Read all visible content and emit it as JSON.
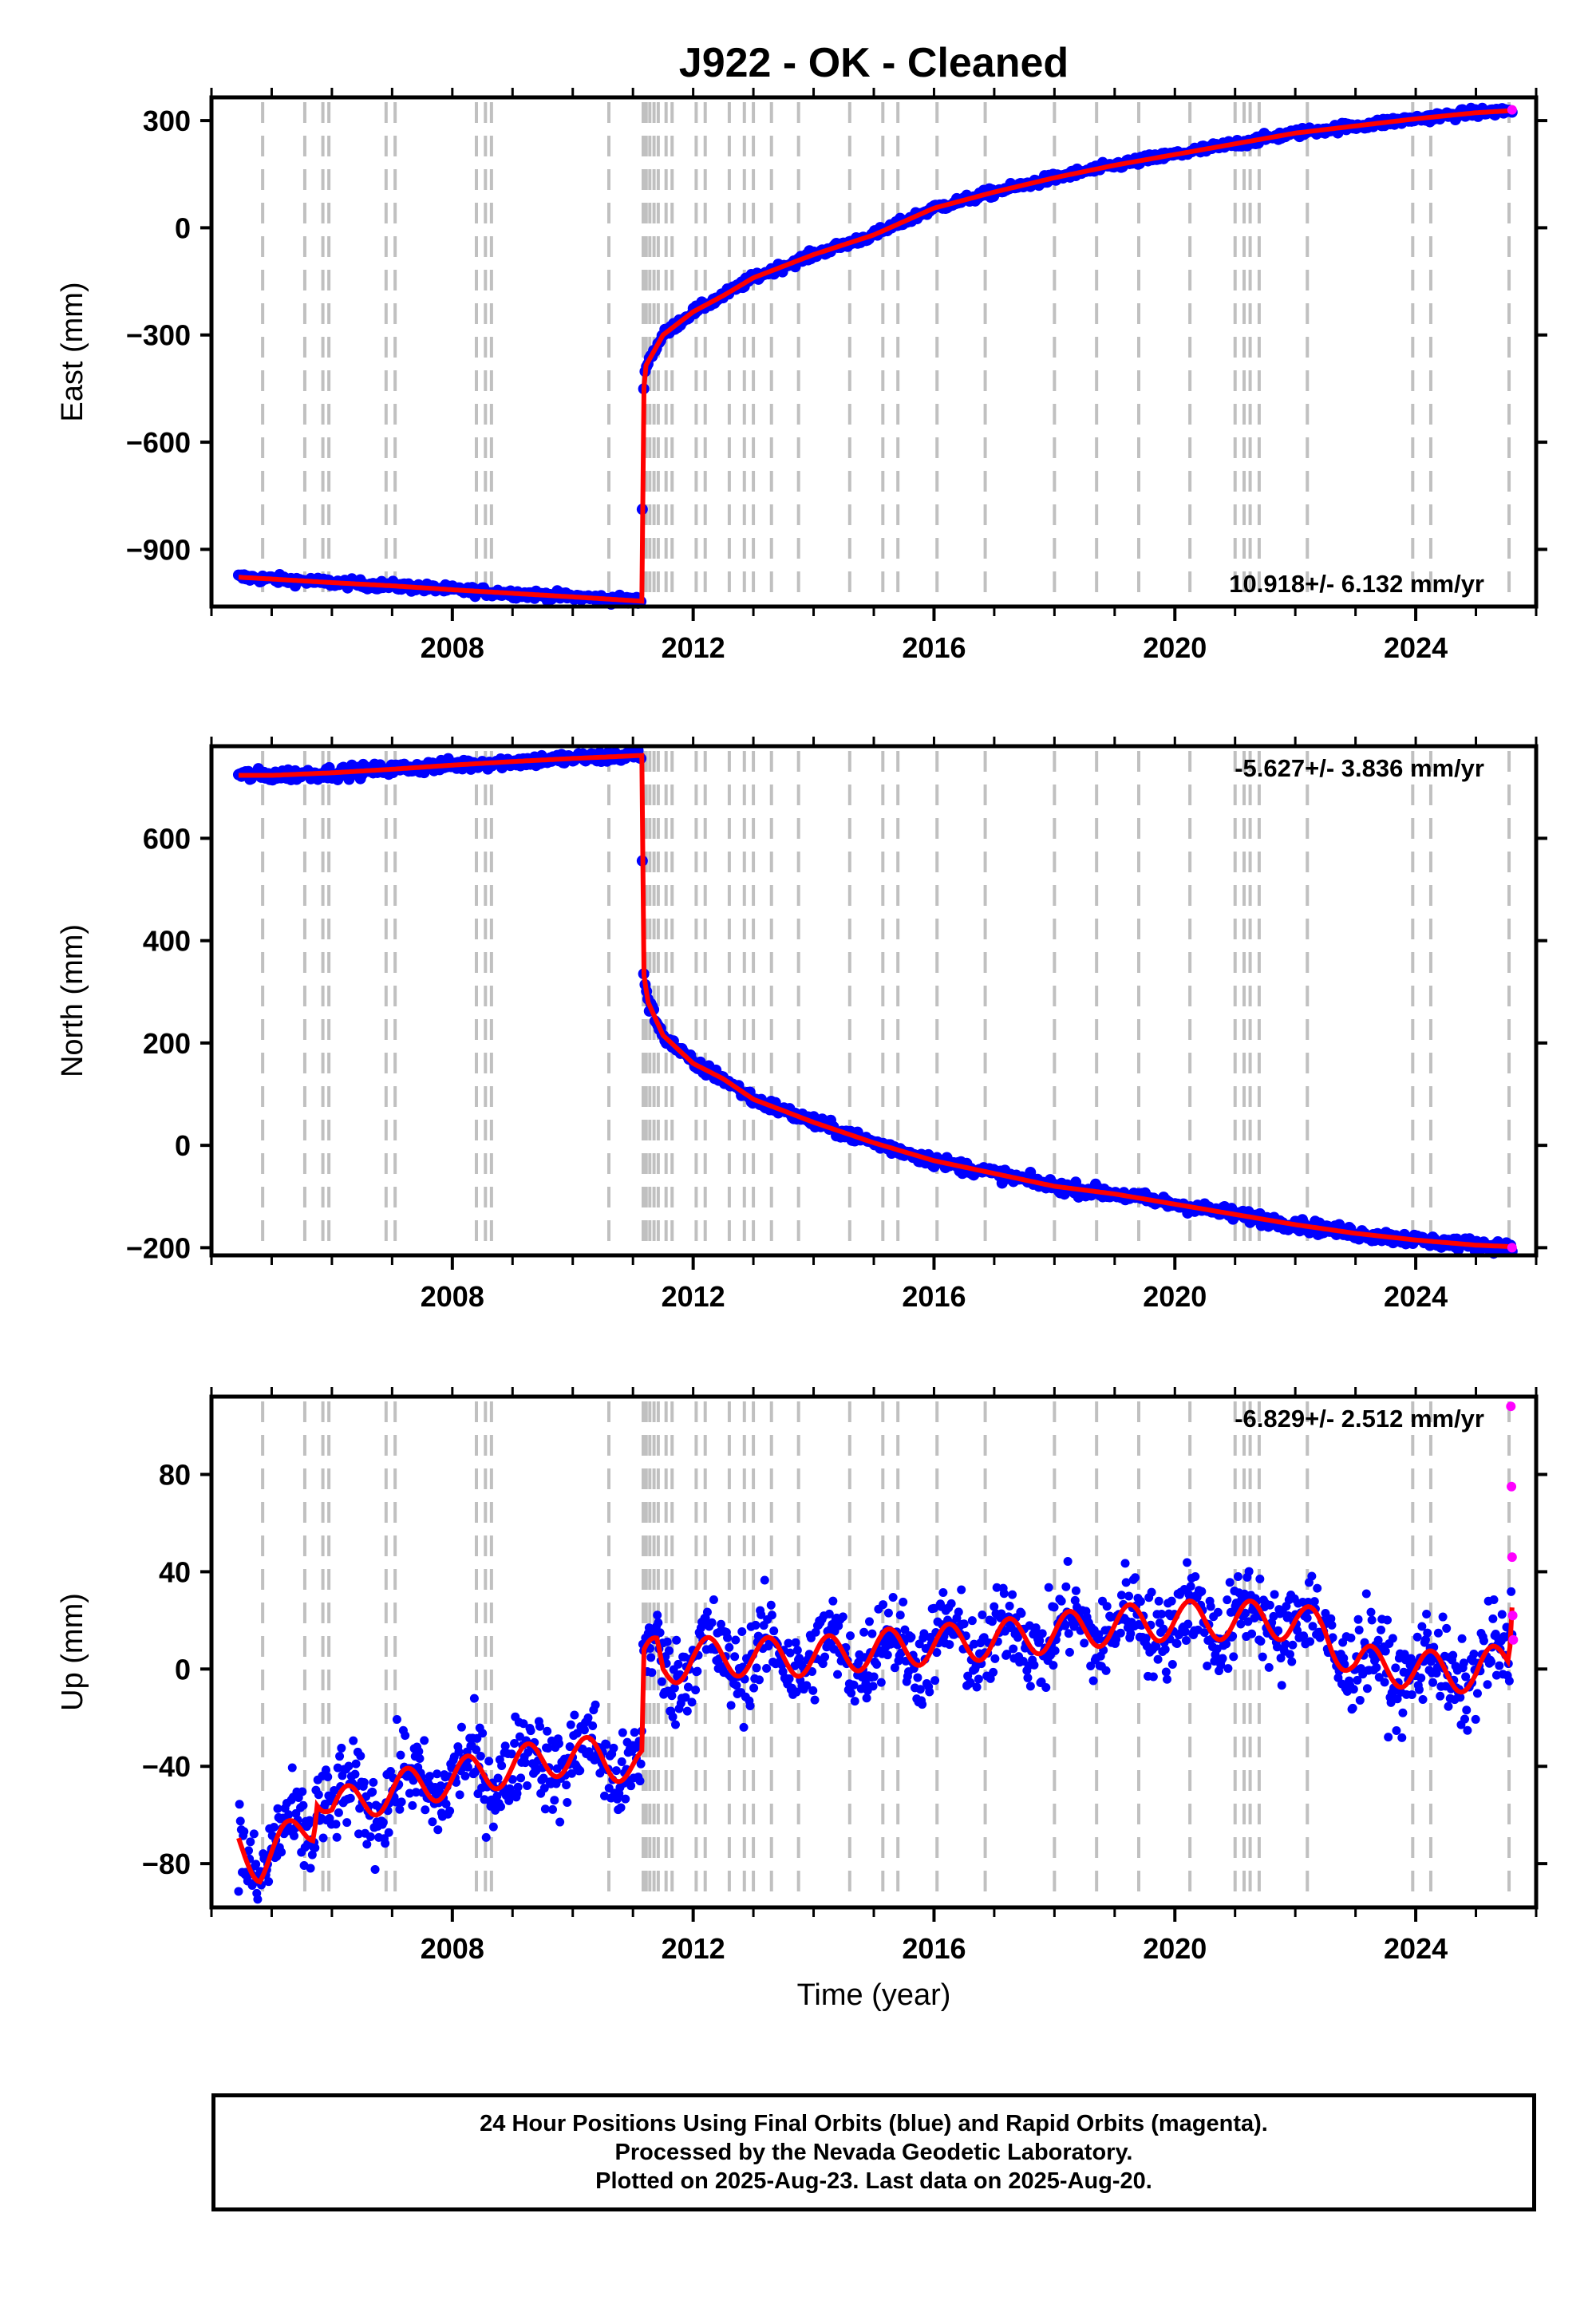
{
  "chart_data": {
    "title": "J922  - OK - Cleaned",
    "type": "scatter",
    "x_range": [
      2004.0,
      2026.0
    ],
    "x_ticks": [
      2008,
      2012,
      2016,
      2020,
      2024
    ],
    "xlabel": "Time (year)",
    "final_orbit_color": "#0000ff",
    "rapid_orbit_color": "#ff00ff",
    "model_color": "#ff0000",
    "offset_line_color": "#c0c0c0",
    "offset_epochs": [
      2004.85,
      2005.55,
      2005.85,
      2005.95,
      2006.9,
      2007.05,
      2008.4,
      2008.55,
      2008.65,
      2010.6,
      2011.17,
      2011.22,
      2011.28,
      2011.35,
      2011.42,
      2011.55,
      2011.65,
      2012.05,
      2012.2,
      2012.6,
      2012.85,
      2013.0,
      2013.3,
      2013.75,
      2014.6,
      2015.15,
      2015.4,
      2016.05,
      2016.85,
      2018.0,
      2018.7,
      2019.4,
      2020.25,
      2021.0,
      2021.15,
      2021.25,
      2021.4,
      2022.2,
      2023.95,
      2024.25,
      2025.55
    ],
    "panels": [
      {
        "name": "east",
        "ylabel": "East (mm)",
        "ylim": [
          -1060,
          365
        ],
        "y_ticks": [
          300,
          0,
          -300,
          -600,
          -900
        ],
        "y_tick_labels": [
          "300",
          "0",
          "−300",
          "−600",
          "−900"
        ],
        "rate_label": "10.918+/- 6.132 mm/yr",
        "rate_label_position": "bottom-right",
        "series_points": [
          [
            2004.45,
            -978
          ],
          [
            2005,
            -983
          ],
          [
            2006,
            -993
          ],
          [
            2007,
            -1002
          ],
          [
            2008,
            -1013
          ],
          [
            2009,
            -1023
          ],
          [
            2010,
            -1033
          ],
          [
            2011.15,
            -1045
          ],
          [
            2011.16,
            -520
          ],
          [
            2011.2,
            -390
          ],
          [
            2011.35,
            -345
          ],
          [
            2011.5,
            -300
          ],
          [
            2012,
            -235
          ],
          [
            2012.5,
            -190
          ],
          [
            2013,
            -140
          ],
          [
            2014,
            -75
          ],
          [
            2015,
            -20
          ],
          [
            2016,
            55
          ],
          [
            2017,
            100
          ],
          [
            2018,
            140
          ],
          [
            2019,
            175
          ],
          [
            2020,
            205
          ],
          [
            2021,
            235
          ],
          [
            2022,
            265
          ],
          [
            2023,
            285
          ],
          [
            2024,
            305
          ],
          [
            2025,
            322
          ],
          [
            2025.6,
            328
          ]
        ],
        "rapid_points": [
          [
            2025.6,
            330
          ]
        ]
      },
      {
        "name": "north",
        "ylabel": "North (mm)",
        "ylim": [
          -215,
          780
        ],
        "y_ticks": [
          600,
          400,
          200,
          0,
          -200
        ],
        "y_tick_labels": [
          "600",
          "400",
          "200",
          "0",
          "−200"
        ],
        "rate_label": "-5.627+/- 3.836 mm/yr",
        "rate_label_position": "top-right",
        "series_points": [
          [
            2004.45,
            723
          ],
          [
            2005,
            723
          ],
          [
            2006,
            728
          ],
          [
            2007,
            735
          ],
          [
            2008,
            743
          ],
          [
            2009,
            750
          ],
          [
            2010,
            756
          ],
          [
            2011.15,
            762
          ],
          [
            2011.16,
            350
          ],
          [
            2011.25,
            280
          ],
          [
            2011.5,
            215
          ],
          [
            2012,
            160
          ],
          [
            2012.5,
            130
          ],
          [
            2013,
            90
          ],
          [
            2014,
            45
          ],
          [
            2015,
            5
          ],
          [
            2016,
            -30
          ],
          [
            2017,
            -55
          ],
          [
            2018,
            -80
          ],
          [
            2019,
            -95
          ],
          [
            2020,
            -115
          ],
          [
            2021,
            -135
          ],
          [
            2022,
            -155
          ],
          [
            2023,
            -172
          ],
          [
            2024,
            -185
          ],
          [
            2025,
            -195
          ],
          [
            2025.6,
            -198
          ]
        ],
        "rapid_points": [
          [
            2025.6,
            -200
          ]
        ]
      },
      {
        "name": "up",
        "ylabel": "Up (mm)",
        "ylim": [
          -98,
          112
        ],
        "y_ticks": [
          80,
          40,
          0,
          -40,
          -80
        ],
        "y_tick_labels": [
          "80",
          "40",
          "0",
          "−40",
          "−80"
        ],
        "rate_label": "-6.829+/- 2.512 mm/yr",
        "rate_label_position": "top-right",
        "series_points": [
          [
            2004.45,
            -72
          ],
          [
            2004.8,
            -80
          ],
          [
            2005,
            -75
          ],
          [
            2005.7,
            -63
          ],
          [
            2005.75,
            -48
          ],
          [
            2006,
            -58
          ],
          [
            2007,
            -50
          ],
          [
            2008,
            -45
          ],
          [
            2009,
            -40
          ],
          [
            2010,
            -35
          ],
          [
            2011.15,
            -40
          ],
          [
            2011.16,
            0
          ],
          [
            2011.4,
            8
          ],
          [
            2011.5,
            0
          ],
          [
            2012,
            5
          ],
          [
            2013,
            5
          ],
          [
            2014,
            5
          ],
          [
            2015,
            8
          ],
          [
            2016,
            10
          ],
          [
            2017,
            12
          ],
          [
            2018,
            15
          ],
          [
            2019,
            18
          ],
          [
            2020,
            20
          ],
          [
            2021,
            20
          ],
          [
            2022,
            20
          ],
          [
            2022.5,
            15
          ],
          [
            2023,
            2
          ],
          [
            2024,
            0
          ],
          [
            2025,
            -2
          ],
          [
            2025.55,
            5
          ],
          [
            2025.6,
            30
          ]
        ],
        "seasonal_amplitude": 8,
        "noise_amplitude": 9,
        "rapid_points": [
          [
            2025.58,
            108
          ],
          [
            2025.59,
            75
          ],
          [
            2025.6,
            46
          ],
          [
            2025.61,
            22
          ],
          [
            2025.62,
            12
          ]
        ]
      }
    ]
  },
  "caption": {
    "line1": "24 Hour Positions Using Final Orbits (blue) and Rapid Orbits (magenta).",
    "line2": "Processed by the Nevada Geodetic Laboratory.",
    "line3": "Plotted on 2025-Aug-23. Last data on 2025-Aug-20."
  }
}
